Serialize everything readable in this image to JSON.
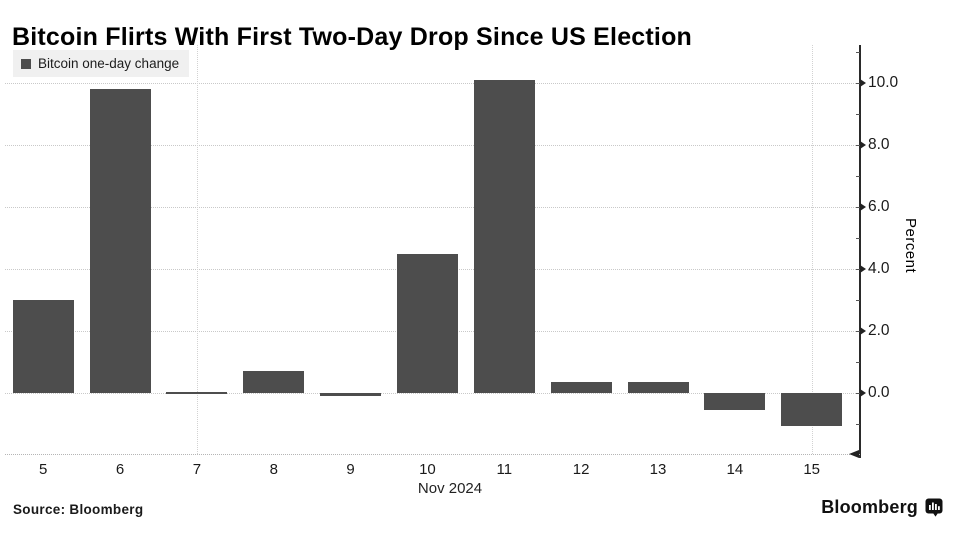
{
  "header": {
    "title": "Bitcoin Flirts With First Two-Day Drop Since US Election"
  },
  "legend": {
    "label": "Bitcoin one-day change",
    "swatch_color": "#4d4d4d"
  },
  "chart_data": {
    "type": "bar",
    "title": "Bitcoin Flirts With First Two-Day Drop Since US Election",
    "series_name": "Bitcoin one-day change",
    "categories": [
      "5",
      "6",
      "7",
      "8",
      "9",
      "10",
      "11",
      "12",
      "13",
      "14",
      "15"
    ],
    "values": [
      3.0,
      9.8,
      0.0,
      0.7,
      -0.1,
      4.5,
      10.1,
      0.35,
      0.35,
      -0.55,
      -1.05
    ],
    "x_axis_label": "Nov 2024",
    "ylabel": "Percent",
    "yticks": [
      0,
      2,
      4,
      6,
      8,
      10
    ],
    "ytick_labels": [
      "0.0",
      "2.0",
      "4.0",
      "6.0",
      "8.0",
      "10.0"
    ],
    "ylim": [
      -2.1,
      11.2
    ],
    "minor_tick_step": 1,
    "grid": "horizontal dotted lines at labeled ticks",
    "vertical_gridlines_at": [
      "7",
      "15"
    ],
    "bar_color": "#4d4d4d",
    "legend_position": "top-left",
    "axis_side": "right"
  },
  "footer": {
    "source": "Source:  Bloomberg",
    "brand": "Bloomberg"
  }
}
